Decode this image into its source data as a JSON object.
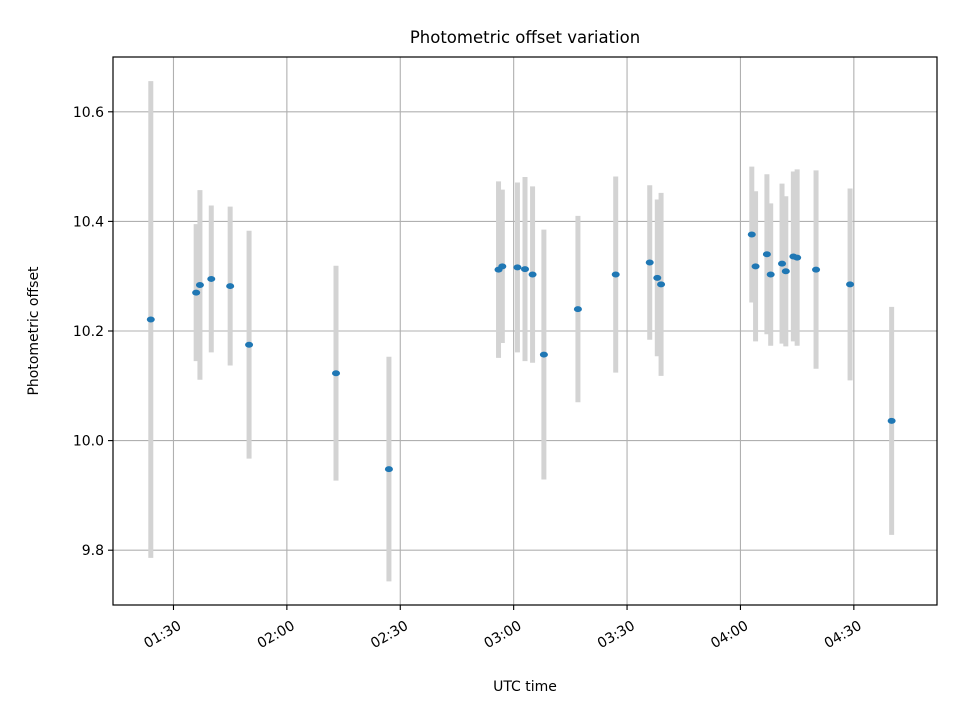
{
  "chart_data": {
    "type": "scatter",
    "title": "Photometric offset variation",
    "xlabel": "UTC time",
    "ylabel": "Photometric offset",
    "x_unit": "UTC time (HH:MM)",
    "xlim": [
      "01:14",
      "04:52"
    ],
    "ylim": [
      9.7,
      10.7
    ],
    "x_ticks": [
      "01:30",
      "02:00",
      "02:30",
      "03:00",
      "03:30",
      "04:00",
      "04:30"
    ],
    "y_ticks": [
      "9.8",
      "10.0",
      "10.2",
      "10.4",
      "10.6"
    ],
    "grid": true,
    "points": [
      {
        "x": "01:24",
        "y": 10.221,
        "err": 0.435
      },
      {
        "x": "01:36",
        "y": 10.27,
        "err": 0.125
      },
      {
        "x": "01:37",
        "y": 10.284,
        "err": 0.173
      },
      {
        "x": "01:40",
        "y": 10.295,
        "err": 0.134
      },
      {
        "x": "01:45",
        "y": 10.282,
        "err": 0.145
      },
      {
        "x": "01:50",
        "y": 10.175,
        "err": 0.208
      },
      {
        "x": "02:13",
        "y": 10.123,
        "err": 0.196
      },
      {
        "x": "02:27",
        "y": 9.948,
        "err": 0.205
      },
      {
        "x": "02:56",
        "y": 10.312,
        "err": 0.161
      },
      {
        "x": "02:57",
        "y": 10.318,
        "err": 0.14
      },
      {
        "x": "03:01",
        "y": 10.316,
        "err": 0.155
      },
      {
        "x": "03:03",
        "y": 10.313,
        "err": 0.168
      },
      {
        "x": "03:05",
        "y": 10.303,
        "err": 0.161
      },
      {
        "x": "03:08",
        "y": 10.157,
        "err": 0.228
      },
      {
        "x": "03:17",
        "y": 10.24,
        "err": 0.17
      },
      {
        "x": "03:27",
        "y": 10.303,
        "err": 0.179
      },
      {
        "x": "03:36",
        "y": 10.325,
        "err": 0.141
      },
      {
        "x": "03:38",
        "y": 10.297,
        "err": 0.143
      },
      {
        "x": "03:39",
        "y": 10.285,
        "err": 0.167
      },
      {
        "x": "04:03",
        "y": 10.376,
        "err": 0.124
      },
      {
        "x": "04:04",
        "y": 10.318,
        "err": 0.137
      },
      {
        "x": "04:07",
        "y": 10.34,
        "err": 0.146
      },
      {
        "x": "04:08",
        "y": 10.303,
        "err": 0.13
      },
      {
        "x": "04:11",
        "y": 10.323,
        "err": 0.146
      },
      {
        "x": "04:12",
        "y": 10.309,
        "err": 0.137
      },
      {
        "x": "04:14",
        "y": 10.336,
        "err": 0.155
      },
      {
        "x": "04:15",
        "y": 10.334,
        "err": 0.161
      },
      {
        "x": "04:20",
        "y": 10.312,
        "err": 0.181
      },
      {
        "x": "04:29",
        "y": 10.285,
        "err": 0.175
      },
      {
        "x": "04:40",
        "y": 10.036,
        "err": 0.208
      }
    ],
    "marker_color": "#1f77b4",
    "errorbar_color": "#d3d3d3",
    "grid_color": "#b0b0b0"
  }
}
